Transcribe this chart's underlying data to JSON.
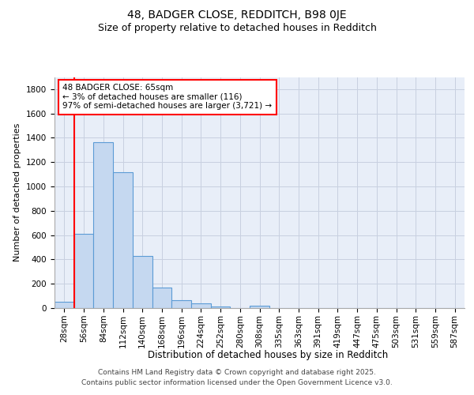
{
  "title1": "48, BADGER CLOSE, REDDITCH, B98 0JE",
  "title2": "Size of property relative to detached houses in Redditch",
  "xlabel": "Distribution of detached houses by size in Redditch",
  "ylabel": "Number of detached properties",
  "bin_labels": [
    "28sqm",
    "56sqm",
    "84sqm",
    "112sqm",
    "140sqm",
    "168sqm",
    "196sqm",
    "224sqm",
    "252sqm",
    "280sqm",
    "308sqm",
    "335sqm",
    "363sqm",
    "391sqm",
    "419sqm",
    "447sqm",
    "475sqm",
    "503sqm",
    "531sqm",
    "559sqm",
    "587sqm"
  ],
  "bar_values": [
    50,
    610,
    1365,
    1120,
    430,
    170,
    65,
    38,
    12,
    0,
    20,
    0,
    0,
    0,
    0,
    0,
    0,
    0,
    0,
    0,
    0
  ],
  "bar_color": "#c5d8f0",
  "bar_edge_color": "#5b9bd5",
  "vline_x_idx": 1,
  "vline_color": "red",
  "annotation_text": "48 BADGER CLOSE: 65sqm\n← 3% of detached houses are smaller (116)\n97% of semi-detached houses are larger (3,721) →",
  "annotation_box_color": "white",
  "annotation_box_edge_color": "red",
  "annotation_fontsize": 7.5,
  "ylim": [
    0,
    1900
  ],
  "yticks": [
    0,
    200,
    400,
    600,
    800,
    1000,
    1200,
    1400,
    1600,
    1800
  ],
  "grid_color": "#c8d0e0",
  "bg_color": "#e8eef8",
  "title1_fontsize": 10,
  "title2_fontsize": 9,
  "xlabel_fontsize": 8.5,
  "ylabel_fontsize": 8,
  "tick_fontsize": 7.5,
  "footer_line1": "Contains HM Land Registry data © Crown copyright and database right 2025.",
  "footer_line2": "Contains public sector information licensed under the Open Government Licence v3.0.",
  "footer_fontsize": 6.5
}
